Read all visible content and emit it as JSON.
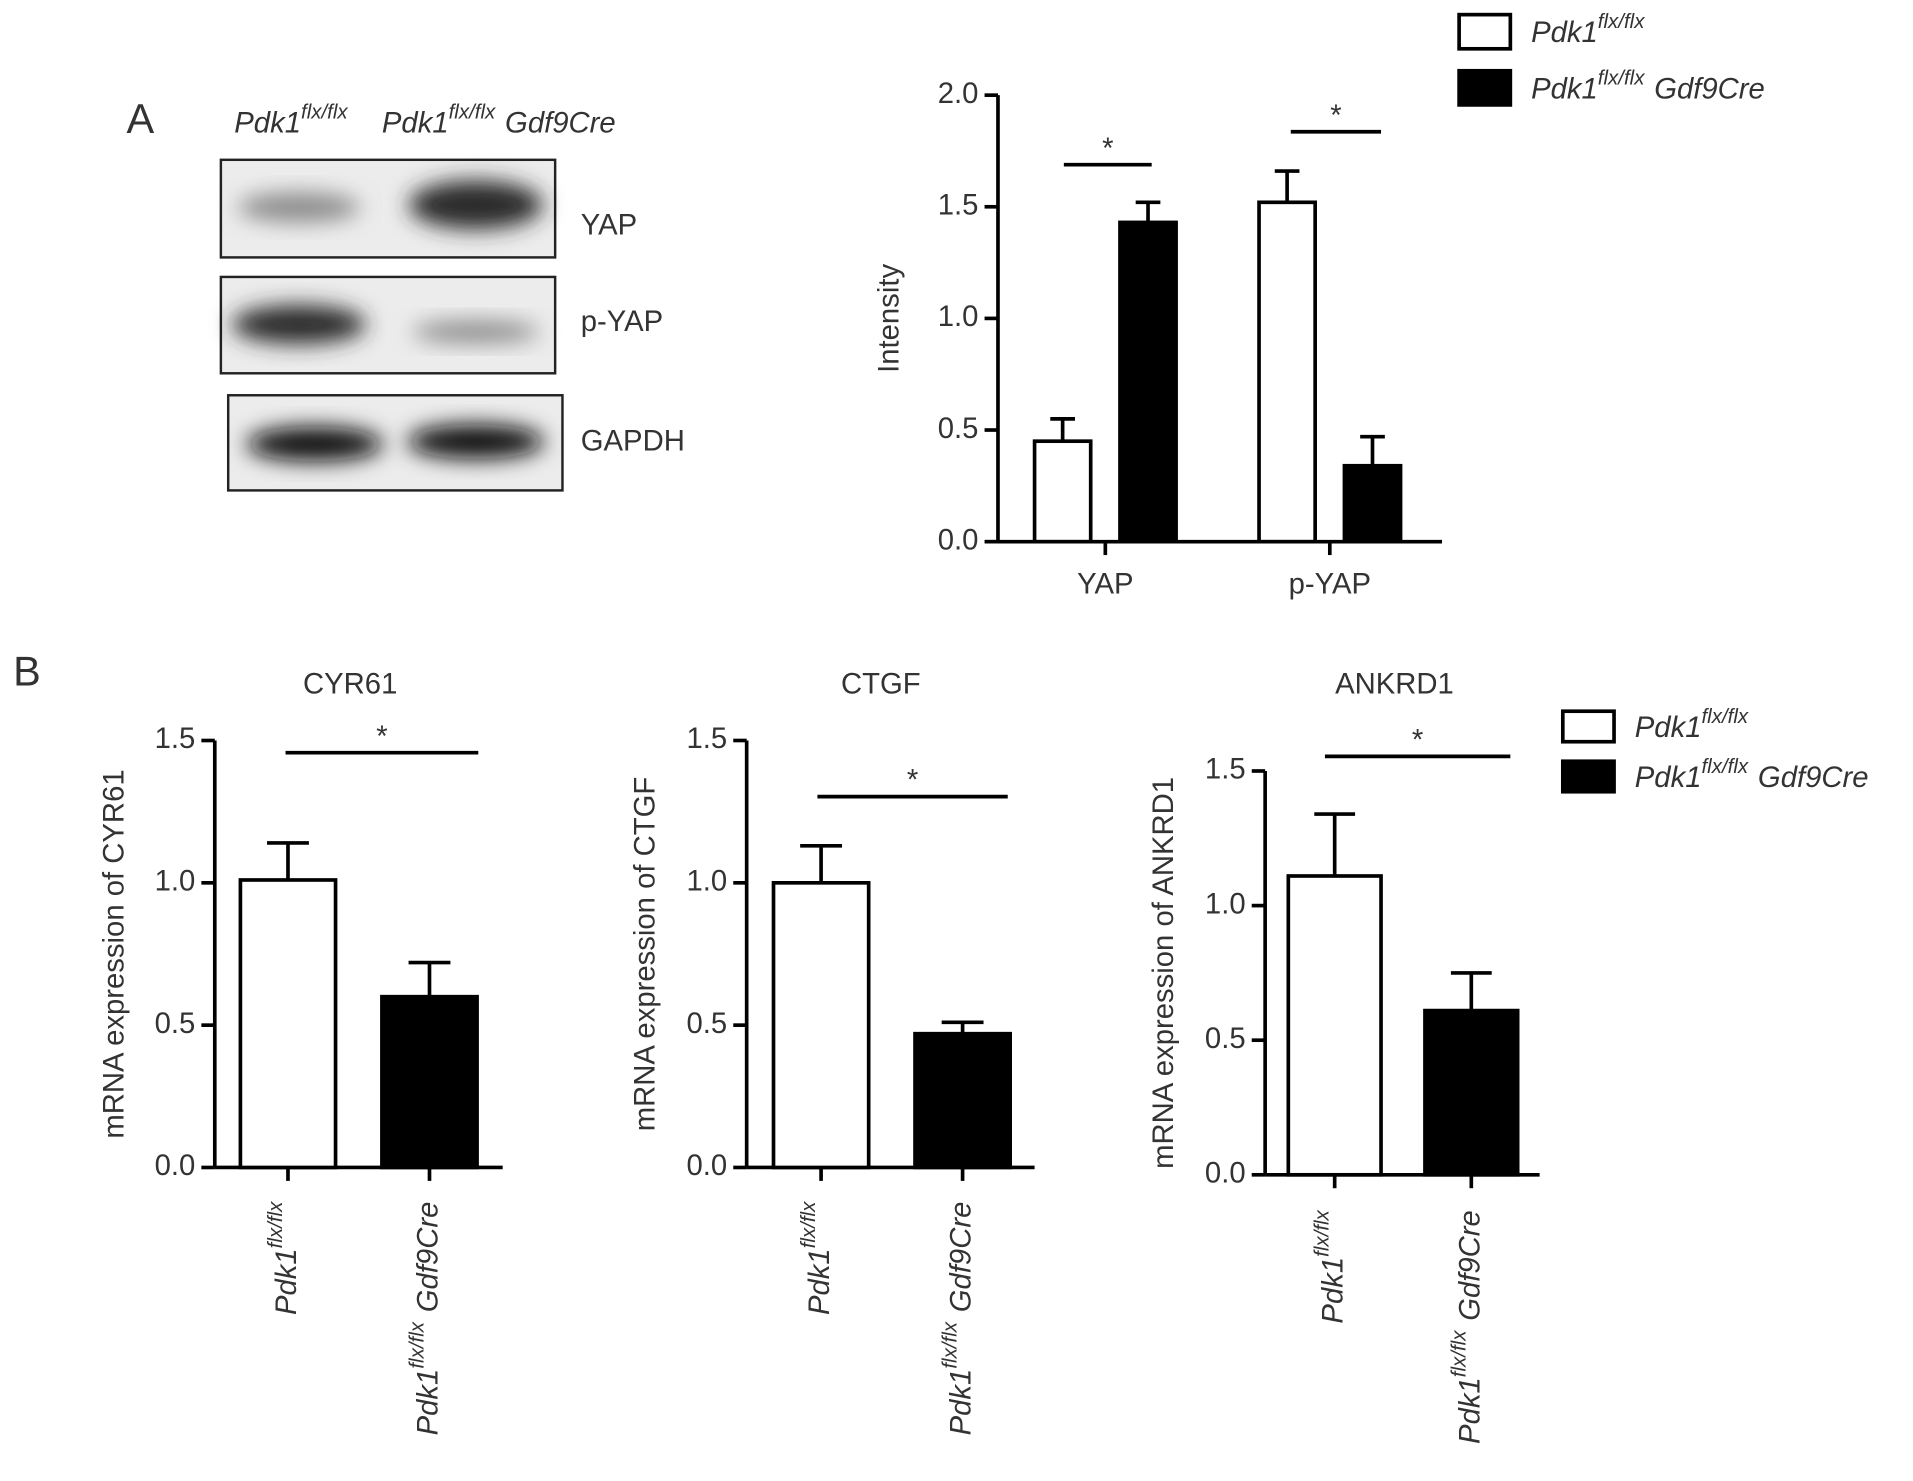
{
  "panels": [
    "A",
    "B"
  ],
  "blot": {
    "columns": [
      {
        "base": "Pdk1",
        "sup": "flx/flx"
      },
      {
        "base": "Pdk1",
        "sup": "flx/flx",
        "suffix": "Gdf9Cre"
      }
    ],
    "rows": [
      "YAP",
      "p-YAP",
      "GAPDH"
    ]
  },
  "chart_data": [
    {
      "type": "bar",
      "ylabel": "Intensity",
      "categories": [
        "YAP",
        "p-YAP"
      ],
      "series": [
        {
          "name": {
            "base": "Pdk1",
            "sup": "flx/flx"
          },
          "color": "#ffffff",
          "values": [
            0.45,
            1.52
          ],
          "errors": [
            0.1,
            0.14
          ]
        },
        {
          "name": {
            "base": "Pdk1",
            "sup": "flx/flx",
            "suffix": "Gdf9Cre"
          },
          "color": "#000000",
          "values": [
            1.43,
            0.34
          ],
          "errors": [
            0.09,
            0.13
          ]
        }
      ],
      "ylim": [
        0,
        2
      ],
      "yticks": [
        {
          "value": 0,
          "label": "0.0"
        },
        {
          "value": 0.5,
          "label": "0.5"
        },
        {
          "value": 1,
          "label": "1.0"
        },
        {
          "value": 1.5,
          "label": "1.5"
        },
        {
          "value": 2,
          "label": "2.0"
        }
      ],
      "significance": [
        "*",
        "*"
      ]
    },
    {
      "type": "bar",
      "title": "CYR61",
      "ylabel": "mRNA expression of CYR61",
      "categories": [
        {
          "base": "Pdk1",
          "sup": "flx/flx"
        },
        {
          "base": "Pdk1",
          "sup": "flx/flx",
          "suffix": "Gdf9Cre"
        }
      ],
      "values": [
        1.01,
        0.6
      ],
      "errors": [
        0.13,
        0.12
      ],
      "colors": [
        "#ffffff",
        "#000000"
      ],
      "ylim": [
        0,
        1.5
      ],
      "yticks": [
        {
          "value": 0,
          "label": "0.0"
        },
        {
          "value": 0.5,
          "label": "0.5"
        },
        {
          "value": 1,
          "label": "1.0"
        },
        {
          "value": 1.5,
          "label": "1.5"
        }
      ],
      "significance": [
        "*"
      ]
    },
    {
      "type": "bar",
      "title": "CTGF",
      "ylabel": "mRNA expression of CTGF",
      "categories": [
        {
          "base": "Pdk1",
          "sup": "flx/flx"
        },
        {
          "base": "Pdk1",
          "sup": "flx/flx",
          "suffix": "Gdf9Cre"
        }
      ],
      "values": [
        1.0,
        0.47
      ],
      "errors": [
        0.13,
        0.04
      ],
      "colors": [
        "#ffffff",
        "#000000"
      ],
      "ylim": [
        0,
        1.5
      ],
      "yticks": [
        {
          "value": 0,
          "label": "0.0"
        },
        {
          "value": 0.5,
          "label": "0.5"
        },
        {
          "value": 1,
          "label": "1.0"
        },
        {
          "value": 1.5,
          "label": "1.5"
        }
      ],
      "significance": [
        "*"
      ]
    },
    {
      "type": "bar",
      "title": "ANKRD1",
      "ylabel": "mRNA expression of ANKRD1",
      "categories": [
        {
          "base": "Pdk1",
          "sup": "flx/flx"
        },
        {
          "base": "Pdk1",
          "sup": "flx/flx",
          "suffix": "Gdf9Cre"
        }
      ],
      "values": [
        1.11,
        0.61
      ],
      "errors": [
        0.23,
        0.14
      ],
      "colors": [
        "#ffffff",
        "#000000"
      ],
      "ylim": [
        0,
        1.5
      ],
      "yticks": [
        {
          "value": 0,
          "label": "0.0"
        },
        {
          "value": 0.5,
          "label": "0.5"
        },
        {
          "value": 1,
          "label": "1.0"
        },
        {
          "value": 1.5,
          "label": "1.5"
        }
      ],
      "significance": [
        "*"
      ],
      "legend": [
        {
          "name": {
            "base": "Pdk1",
            "sup": "flx/flx"
          },
          "color": "#ffffff"
        },
        {
          "name": {
            "base": "Pdk1",
            "sup": "flx/flx",
            "suffix": "Gdf9Cre"
          },
          "color": "#000000"
        }
      ]
    }
  ]
}
